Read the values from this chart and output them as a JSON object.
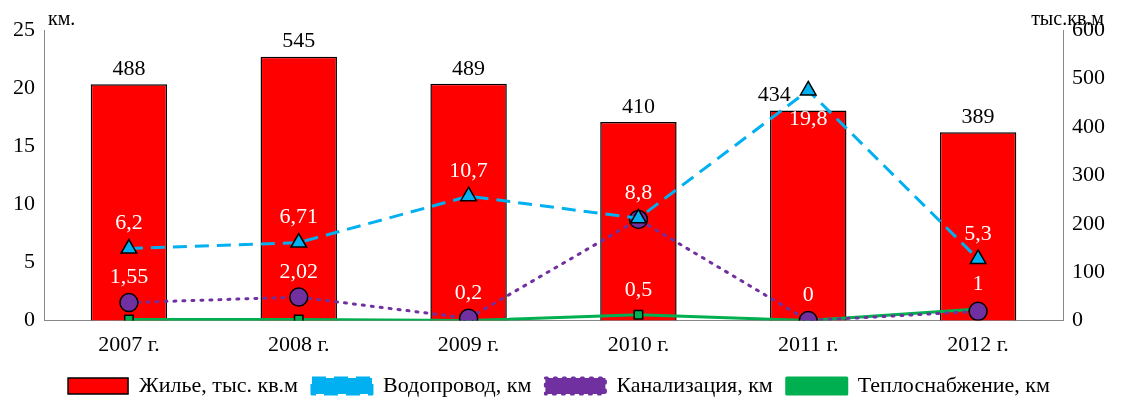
{
  "chart_data": {
    "type": "bar",
    "categories": [
      "2007 г.",
      "2008 г.",
      "2009 г.",
      "2010 г.",
      "2011 г.",
      "2012 г."
    ],
    "ylabel": "км.",
    "y2label": "тыс.кв.м",
    "ylim": [
      0,
      25
    ],
    "yticks": [
      0,
      5,
      10,
      15,
      20,
      25
    ],
    "y2lim": [
      0,
      600
    ],
    "y2ticks": [
      0,
      100,
      200,
      300,
      400,
      500,
      600
    ],
    "grid": false,
    "legend": "bottom",
    "series": [
      {
        "name": "Жилье, тыс. кв.м",
        "axis": "y2",
        "color": "#ff0000",
        "values": [
          488,
          545,
          489,
          410,
          434,
          389
        ],
        "value_labels": [
          "488",
          "545",
          "489",
          "410",
          "434",
          "389"
        ]
      },
      {
        "name": "Водопровод, км",
        "type": "line",
        "axis": "y",
        "color": "#00b0f0",
        "marker": "triangle",
        "line_style": "dashed",
        "values": [
          6.2,
          6.71,
          10.7,
          8.8,
          19.8,
          5.3
        ],
        "value_labels": [
          "6,2",
          "6,71",
          "10,7",
          "8,8",
          "19,8",
          "5,3"
        ]
      },
      {
        "name": "Канализация, км",
        "type": "line",
        "axis": "y",
        "color": "#7030a0",
        "marker": "circle",
        "line_style": "dotted",
        "values": [
          1.55,
          2.02,
          0.2,
          8.7,
          0,
          0.8
        ],
        "value_labels": [
          "1,55",
          "2,02",
          "0,2",
          null,
          "0",
          null
        ]
      },
      {
        "name": "Теплоснабжение, км",
        "type": "line",
        "axis": "y",
        "color": "#00b050",
        "marker": "square",
        "line_style": "solid",
        "values": [
          0.1,
          0.1,
          0,
          0.5,
          0,
          1
        ],
        "value_labels": [
          null,
          null,
          null,
          "0,5",
          null,
          "1"
        ]
      }
    ]
  }
}
